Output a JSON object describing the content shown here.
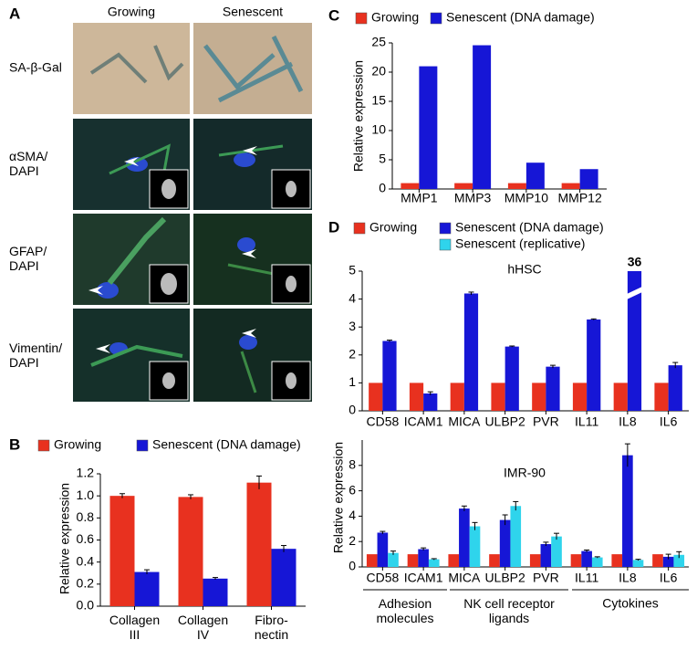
{
  "panel_a": {
    "label": "A",
    "columns": [
      "Growing",
      "Senescent"
    ],
    "rows": [
      "SA-β-Gal",
      "αSMA/\nDAPI",
      "GFAP/\nDAPI",
      "Vimentin/\nDAPI"
    ]
  },
  "chart_data": [
    {
      "type": "bar",
      "panel_label": "B",
      "y_label": "Relative expression",
      "categories": [
        "Collagen\nIII",
        "Collagen\nIV",
        "Fibro-\nnectin"
      ],
      "series": [
        {
          "name": "Growing",
          "color": "#e8311f",
          "values": [
            1.0,
            0.99,
            1.12
          ],
          "errors": [
            0.02,
            0.02,
            0.06
          ]
        },
        {
          "name": "Senescent (DNA damage)",
          "color": "#1616d6",
          "values": [
            0.31,
            0.25,
            0.52
          ],
          "errors": [
            0.02,
            0.01,
            0.03
          ]
        }
      ],
      "ylim": [
        0,
        1.2
      ],
      "yticks": [
        {
          "value": 0,
          "label": "0.0"
        },
        0.2,
        0.4,
        0.6,
        0.8,
        {
          "value": 1,
          "label": "1.0"
        },
        1.2
      ]
    },
    {
      "type": "bar",
      "panel_label": "C",
      "y_label": "Relative expression",
      "categories": [
        "MMP1",
        "MMP3",
        "MMP10",
        "MMP12"
      ],
      "series": [
        {
          "name": "Growing",
          "color": "#e8311f",
          "values": [
            1,
            1,
            1,
            1
          ]
        },
        {
          "name": "Senescent (DNA damage)",
          "color": "#1616d6",
          "values": [
            21,
            24.6,
            4.5,
            3.4
          ]
        }
      ],
      "ylim": [
        0,
        25
      ],
      "yticks": [
        0,
        5,
        10,
        15,
        20,
        25
      ]
    },
    {
      "type": "grouped-bar-panels",
      "panel_label": "D",
      "y_label": "Relative expression",
      "series": [
        {
          "name": "Growing",
          "color": "#e8311f"
        },
        {
          "name": "Senescent (DNA damage)",
          "color": "#1616d6"
        },
        {
          "name": "Senescent (replicative)",
          "color": "#2fd4ec"
        }
      ],
      "subplots": [
        {
          "title": "hHSC",
          "categories": [
            "CD58",
            "ICAM1",
            "MICA",
            "ULBP2",
            "PVR",
            "IL11",
            "IL8",
            "IL6"
          ],
          "values": [
            [
              1,
              1,
              1,
              1,
              1,
              1,
              1,
              1
            ],
            [
              2.5,
              0.62,
              4.2,
              2.3,
              1.58,
              3.27,
              36,
              1.63
            ]
          ],
          "errors": [
            null,
            [
              0.03,
              0.06,
              0.05,
              0.02,
              0.05,
              0.02,
              null,
              0.1
            ]
          ],
          "ylim": [
            0,
            5
          ],
          "yticks": [
            0,
            1,
            2,
            3,
            4,
            5
          ]
        },
        {
          "title": "IMR-90",
          "categories": [
            "CD58",
            "ICAM1",
            "MICA",
            "ULBP2",
            "PVR",
            "IL11",
            "IL8",
            "IL6"
          ],
          "values": [
            [
              1,
              1,
              1,
              1,
              1,
              1,
              1,
              1
            ],
            [
              2.7,
              1.4,
              4.6,
              3.7,
              1.8,
              1.25,
              8.8,
              0.8
            ],
            [
              1.1,
              0.6,
              3.2,
              4.8,
              2.4,
              0.75,
              0.55,
              0.95
            ]
          ],
          "errors": [
            null,
            [
              0.1,
              0.1,
              0.2,
              0.4,
              0.15,
              0.08,
              0.9,
              0.2
            ],
            [
              0.15,
              0.05,
              0.3,
              0.35,
              0.25,
              0.05,
              0.05,
              0.25
            ]
          ],
          "ylim": [
            0,
            10
          ],
          "yticks": [
            0,
            2,
            4,
            6,
            8
          ],
          "groups": [
            "Adhesion\nmolecules",
            "NK cell receptor\nligands",
            "Cytokines"
          ]
        }
      ]
    }
  ]
}
